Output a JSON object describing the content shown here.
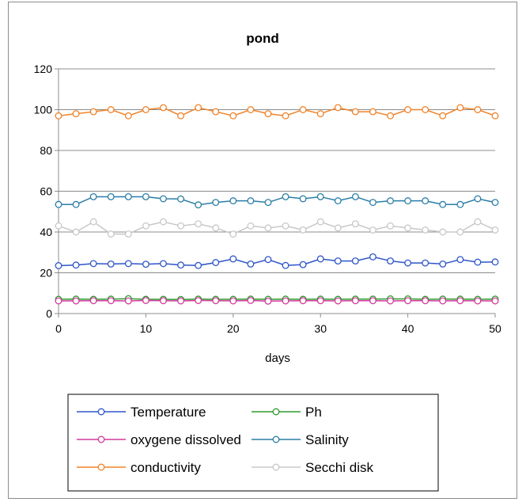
{
  "chart_data": {
    "type": "line",
    "title": "pond",
    "xlabel": "days",
    "ylabel": "",
    "xlim": [
      0,
      50
    ],
    "ylim": [
      0,
      120
    ],
    "xticks": [
      0,
      10,
      20,
      30,
      40,
      50
    ],
    "yticks": [
      0,
      20,
      40,
      60,
      80,
      100,
      120
    ],
    "grid": "horizontal",
    "legend_position": "bottom",
    "x": [
      0,
      2,
      4,
      6,
      8,
      10,
      12,
      14,
      16,
      18,
      20,
      22,
      24,
      26,
      28,
      30,
      32,
      34,
      36,
      38,
      40,
      42,
      44,
      46,
      48,
      50
    ],
    "series": [
      {
        "name": "Temperature",
        "color": "#2e55c8",
        "values": [
          23.5,
          23.8,
          24.5,
          24.3,
          24.5,
          24.2,
          24.5,
          23.8,
          23.6,
          25.0,
          26.8,
          24.3,
          26.5,
          23.6,
          24.0,
          26.8,
          25.8,
          25.8,
          27.8,
          25.8,
          24.8,
          24.8,
          24.3,
          26.5,
          25.2,
          25.3
        ]
      },
      {
        "name": "Ph",
        "color": "#2f9a2f",
        "values": [
          7.0,
          7.1,
          7.0,
          7.1,
          7.3,
          7.0,
          7.0,
          6.9,
          7.1,
          7.0,
          7.0,
          7.1,
          7.0,
          7.1,
          7.0,
          7.1,
          7.0,
          7.1,
          7.1,
          7.2,
          7.2,
          7.0,
          7.1,
          7.1,
          7.0,
          7.1
        ]
      },
      {
        "name": "oxygene dissolved",
        "color": "#d23a9c",
        "values": [
          6.2,
          6.2,
          6.3,
          6.3,
          6.2,
          6.4,
          6.3,
          6.2,
          6.4,
          6.3,
          6.2,
          6.4,
          6.1,
          6.2,
          6.3,
          6.3,
          6.2,
          6.3,
          6.3,
          6.2,
          6.3,
          6.3,
          6.2,
          6.3,
          6.2,
          6.2
        ]
      },
      {
        "name": "Salinity",
        "color": "#2a7da6",
        "values": [
          53.5,
          53.5,
          57.3,
          57.3,
          57.3,
          57.3,
          56.3,
          56.2,
          53.3,
          54.5,
          55.3,
          55.3,
          54.5,
          57.3,
          56.3,
          57.3,
          55.3,
          57.3,
          54.5,
          55.3,
          55.3,
          55.3,
          53.5,
          53.5,
          56.3,
          54.5
        ]
      },
      {
        "name": "conductivity",
        "color": "#f0832a",
        "values": [
          97,
          98,
          99,
          100,
          97,
          100,
          101,
          97,
          101,
          99,
          97,
          100,
          98,
          97,
          100,
          98,
          101,
          99,
          99,
          97,
          100,
          100,
          97,
          101,
          100,
          97
        ]
      },
      {
        "name": "Secchi disk",
        "color": "#c8c8c8",
        "values": [
          43,
          40,
          45,
          39,
          39,
          43,
          45,
          43,
          44,
          42,
          39,
          43,
          42,
          43,
          41,
          45,
          42,
          44,
          41,
          43,
          42,
          41,
          40,
          40,
          45,
          41
        ]
      }
    ]
  }
}
